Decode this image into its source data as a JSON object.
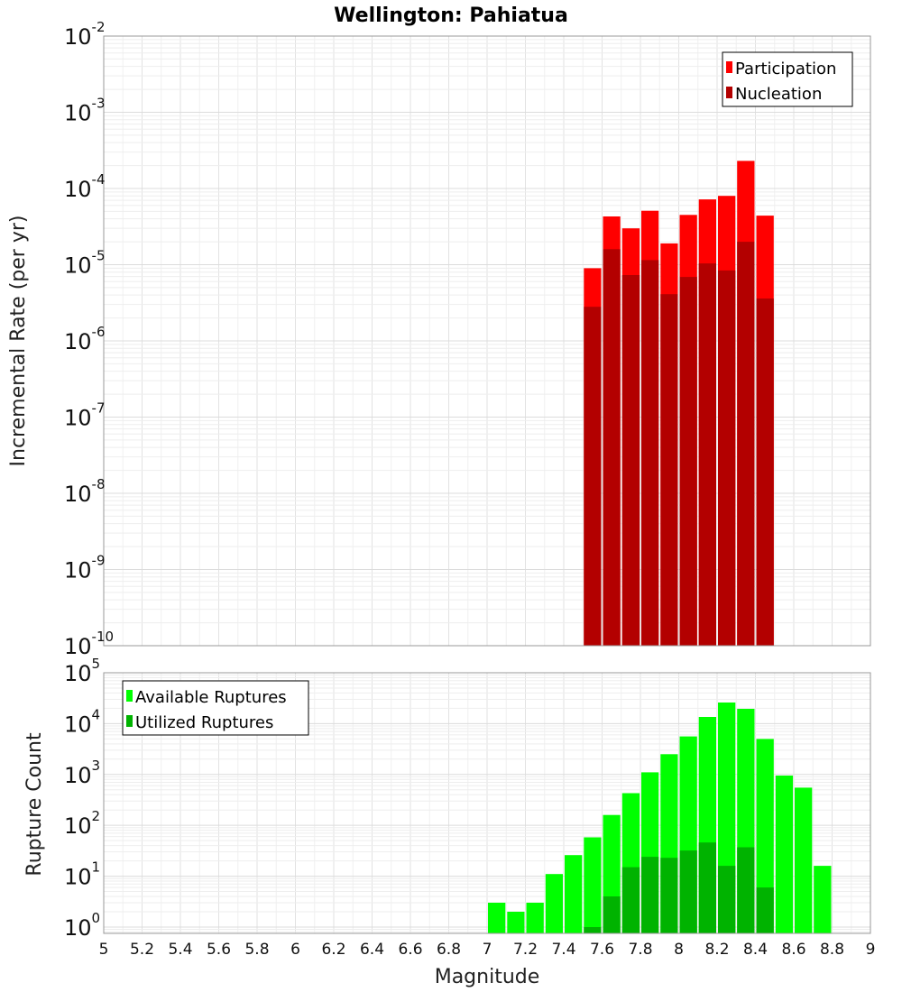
{
  "chart_data": [
    {
      "type": "bar",
      "panel": "top",
      "title": "Wellington: Pahiatua",
      "xlabel": "Magnitude",
      "ylabel": "Incremental Rate (per yr)",
      "yscale": "log",
      "xlim": [
        5,
        9
      ],
      "ylim": [
        1e-10,
        0.01
      ],
      "y_ticks": [
        {
          "base": "10",
          "exp": "-10",
          "value": 1e-10
        },
        {
          "base": "10",
          "exp": "-9",
          "value": 1e-09
        },
        {
          "base": "10",
          "exp": "-8",
          "value": 1e-08
        },
        {
          "base": "10",
          "exp": "-7",
          "value": 1e-07
        },
        {
          "base": "10",
          "exp": "-6",
          "value": 1e-06
        },
        {
          "base": "10",
          "exp": "-5",
          "value": 1e-05
        },
        {
          "base": "10",
          "exp": "-4",
          "value": 0.0001
        },
        {
          "base": "10",
          "exp": "-3",
          "value": 0.001
        },
        {
          "base": "10",
          "exp": "-2",
          "value": 0.01
        }
      ],
      "bin_width": 0.1,
      "x": [
        7.55,
        7.65,
        7.75,
        7.85,
        7.95,
        8.05,
        8.15,
        8.25,
        8.35,
        8.45
      ],
      "series": [
        {
          "name": "Participation",
          "color": "#ff0000",
          "values": [
            9e-06,
            4.3e-05,
            3e-05,
            5.1e-05,
            1.9e-05,
            4.5e-05,
            7.2e-05,
            8e-05,
            0.00023,
            4.4e-05
          ]
        },
        {
          "name": "Nucleation",
          "color": "#b30000",
          "values": [
            2.8e-06,
            1.6e-05,
            7.3e-06,
            1.15e-05,
            4.1e-06,
            6.9e-06,
            1.04e-05,
            8.4e-06,
            2e-05,
            3.6e-06
          ]
        }
      ],
      "legend": {
        "position": "top-right",
        "entries": [
          "Participation",
          "Nucleation"
        ]
      }
    },
    {
      "type": "bar",
      "panel": "bottom",
      "xlabel": "Magnitude",
      "ylabel": "Rupture Count",
      "yscale": "log",
      "xlim": [
        5,
        9
      ],
      "ylim": [
        0.75,
        100000.0
      ],
      "y_ticks": [
        {
          "base": "10",
          "exp": "0",
          "value": 1
        },
        {
          "base": "10",
          "exp": "1",
          "value": 10
        },
        {
          "base": "10",
          "exp": "2",
          "value": 100
        },
        {
          "base": "10",
          "exp": "3",
          "value": 1000
        },
        {
          "base": "10",
          "exp": "4",
          "value": 10000
        },
        {
          "base": "10",
          "exp": "5",
          "value": 100000
        }
      ],
      "x_ticks": [
        "5",
        "5.2",
        "5.4",
        "5.6",
        "5.8",
        "6",
        "6.2",
        "6.4",
        "6.6",
        "6.8",
        "7",
        "7.2",
        "7.4",
        "7.6",
        "7.8",
        "8",
        "8.2",
        "8.4",
        "8.6",
        "8.8",
        "9"
      ],
      "bin_width": 0.1,
      "x": [
        7.05,
        7.15,
        7.25,
        7.35,
        7.45,
        7.55,
        7.65,
        7.75,
        7.85,
        7.95,
        8.05,
        8.15,
        8.25,
        8.35,
        8.45,
        8.55,
        8.65,
        8.75
      ],
      "series": [
        {
          "name": "Available Ruptures",
          "color": "#00ff00",
          "values": [
            3,
            2,
            3,
            11,
            26,
            58,
            160,
            430,
            1100,
            2500,
            5600,
            13500,
            26000,
            19500,
            5000,
            950,
            550,
            16
          ]
        },
        {
          "name": "Utilized Ruptures",
          "color": "#00b300",
          "values": [
            0,
            0,
            0,
            0,
            0,
            1,
            4,
            15,
            24,
            23,
            32,
            46,
            16,
            37,
            6,
            0,
            0,
            0
          ]
        }
      ],
      "legend": {
        "position": "top-left",
        "entries": [
          "Available Ruptures",
          "Utilized Ruptures"
        ]
      }
    }
  ]
}
